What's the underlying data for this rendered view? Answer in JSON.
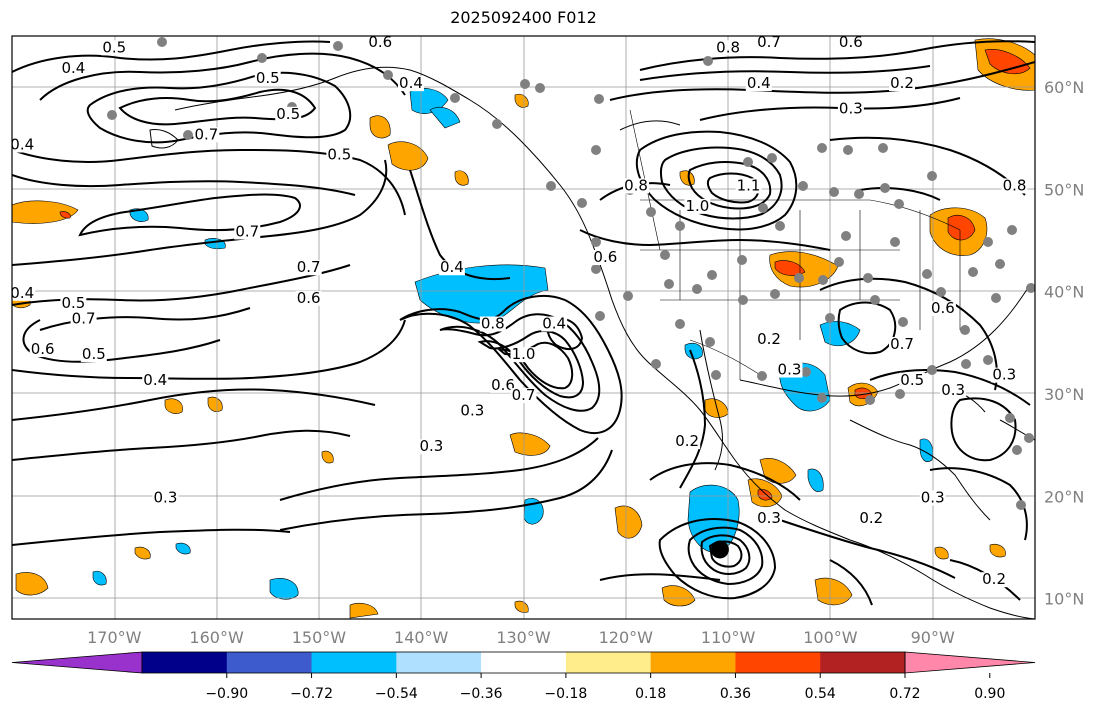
{
  "title": "2025092400 F012",
  "map": {
    "lon_range": [
      -180,
      -80
    ],
    "lat_range": [
      8,
      65
    ],
    "lon_tick_labels": [
      "170°W",
      "160°W",
      "150°W",
      "140°W",
      "130°W",
      "120°W",
      "110°W",
      "100°W",
      "90°W"
    ],
    "lat_tick_labels": [
      "10°N",
      "20°N",
      "30°N",
      "40°N",
      "50°N",
      "60°N"
    ],
    "contour_labels": [
      {
        "text": "0.4",
        "lon": -174,
        "lat": 61.5
      },
      {
        "text": "0.5",
        "lon": -170,
        "lat": 63.5
      },
      {
        "text": "0.5",
        "lon": -155,
        "lat": 60.5
      },
      {
        "text": "0.6",
        "lon": -144,
        "lat": 64
      },
      {
        "text": "0.4",
        "lon": -141,
        "lat": 60
      },
      {
        "text": "0.5",
        "lon": -153,
        "lat": 57
      },
      {
        "text": "0.7",
        "lon": -161,
        "lat": 55
      },
      {
        "text": "0.4",
        "lon": -179,
        "lat": 54
      },
      {
        "text": "0.5",
        "lon": -148,
        "lat": 53
      },
      {
        "text": "0.7",
        "lon": -157,
        "lat": 45.5
      },
      {
        "text": "0.7",
        "lon": -151,
        "lat": 42
      },
      {
        "text": "0.6",
        "lon": -151,
        "lat": 39
      },
      {
        "text": "0.4",
        "lon": -137,
        "lat": 42
      },
      {
        "text": "0.4",
        "lon": -179,
        "lat": 39.5
      },
      {
        "text": "0.5",
        "lon": -174,
        "lat": 38.5
      },
      {
        "text": "0.7",
        "lon": -173,
        "lat": 37
      },
      {
        "text": "0.6",
        "lon": -177,
        "lat": 34
      },
      {
        "text": "0.5",
        "lon": -172,
        "lat": 33.5
      },
      {
        "text": "0.4",
        "lon": -166,
        "lat": 31
      },
      {
        "text": "0.8",
        "lon": -133,
        "lat": 36.5
      },
      {
        "text": "0.4",
        "lon": -127,
        "lat": 36.5
      },
      {
        "text": "1.0",
        "lon": -130,
        "lat": 33.5
      },
      {
        "text": "0.6",
        "lon": -132,
        "lat": 30.5
      },
      {
        "text": "0.7",
        "lon": -130,
        "lat": 29.5
      },
      {
        "text": "0.3",
        "lon": -135,
        "lat": 28
      },
      {
        "text": "0.3",
        "lon": -139,
        "lat": 24.5
      },
      {
        "text": "0.3",
        "lon": -165,
        "lat": 19.5
      },
      {
        "text": "0.8",
        "lon": -110,
        "lat": 63.5
      },
      {
        "text": "0.7",
        "lon": -106,
        "lat": 64
      },
      {
        "text": "0.6",
        "lon": -98,
        "lat": 64
      },
      {
        "text": "0.4",
        "lon": -107,
        "lat": 60
      },
      {
        "text": "0.2",
        "lon": -93,
        "lat": 60
      },
      {
        "text": "0.3",
        "lon": -98,
        "lat": 57.5
      },
      {
        "text": "0.8",
        "lon": -119,
        "lat": 50
      },
      {
        "text": "1.0",
        "lon": -113,
        "lat": 48
      },
      {
        "text": "1.1",
        "lon": -108,
        "lat": 50
      },
      {
        "text": "0.6",
        "lon": -122,
        "lat": 43
      },
      {
        "text": "0.8",
        "lon": -82,
        "lat": 50
      },
      {
        "text": "0.2",
        "lon": -106,
        "lat": 35
      },
      {
        "text": "0.3",
        "lon": -104,
        "lat": 32
      },
      {
        "text": "0.7",
        "lon": -93,
        "lat": 34.5
      },
      {
        "text": "0.6",
        "lon": -89,
        "lat": 38
      },
      {
        "text": "0.5",
        "lon": -92,
        "lat": 31
      },
      {
        "text": "0.3",
        "lon": -83,
        "lat": 31.5
      },
      {
        "text": "0.3",
        "lon": -88,
        "lat": 30
      },
      {
        "text": "0.2",
        "lon": -114,
        "lat": 25
      },
      {
        "text": "0.3",
        "lon": -106,
        "lat": 17.5
      },
      {
        "text": "0.2",
        "lon": -96,
        "lat": 17.5
      },
      {
        "text": "0.3",
        "lon": -90,
        "lat": 19.5
      },
      {
        "text": "0.2",
        "lon": -84,
        "lat": 11.5
      }
    ],
    "storm_marker": {
      "lon": -110.8,
      "lat": 14.8,
      "icon": "hurricane-center-dot"
    }
  },
  "colorbar": {
    "colors": [
      "#9932cc",
      "#00008b",
      "#3d5bcc",
      "#00bfff",
      "#b0e0ff",
      "#ffffff",
      "#ffec8b",
      "#ffa500",
      "#ff4500",
      "#b22222",
      "#ff88aa"
    ],
    "tick_labels": [
      "−0.90",
      "−0.72",
      "−0.54",
      "−0.36",
      "−0.18",
      "0.18",
      "0.36",
      "0.54",
      "0.72",
      "0.90"
    ]
  }
}
